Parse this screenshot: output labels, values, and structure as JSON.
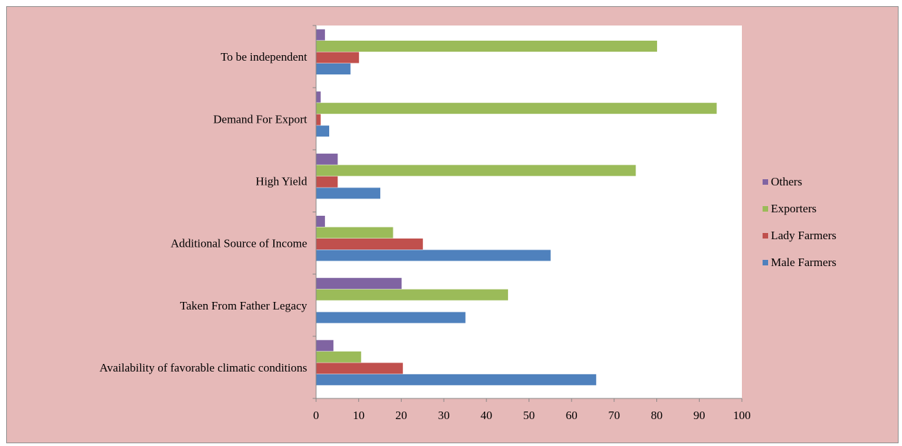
{
  "chart_data": {
    "type": "bar",
    "orientation": "horizontal",
    "categories": [
      "To be independent",
      "Demand For Export",
      "High Yield",
      "Additional Source of Income",
      "Taken From Father Legacy",
      "Availability of favorable climatic conditions"
    ],
    "series": [
      {
        "name": "Others",
        "color": "#8064a2",
        "values": [
          2,
          1,
          5,
          2,
          20,
          4
        ]
      },
      {
        "name": "Exporters",
        "color": "#9bbb59",
        "values": [
          80,
          94,
          75,
          18,
          45,
          10.5
        ]
      },
      {
        "name": "Lady Farmers",
        "color": "#c0504d",
        "values": [
          10,
          1,
          5,
          25,
          0,
          20.3
        ]
      },
      {
        "name": "Male Farmers",
        "color": "#4f81bd",
        "values": [
          8,
          3,
          15,
          55,
          35,
          65.7
        ]
      }
    ],
    "xlim": [
      0,
      100
    ],
    "x_ticks": [
      "0",
      "10",
      "20",
      "30",
      "40",
      "50",
      "60",
      "70",
      "80",
      "90",
      "100"
    ],
    "grid": false,
    "legend": [
      "Others",
      "Exporters",
      "Lady Farmers",
      "Male Farmers"
    ],
    "legend_position": "right",
    "title": "",
    "xlabel": "",
    "ylabel": ""
  },
  "colors": {
    "outer_background": "#e6b9b8",
    "plot_background": "#ffffff",
    "frame_border": "#8c8c8c",
    "axis_line": "#868686"
  }
}
